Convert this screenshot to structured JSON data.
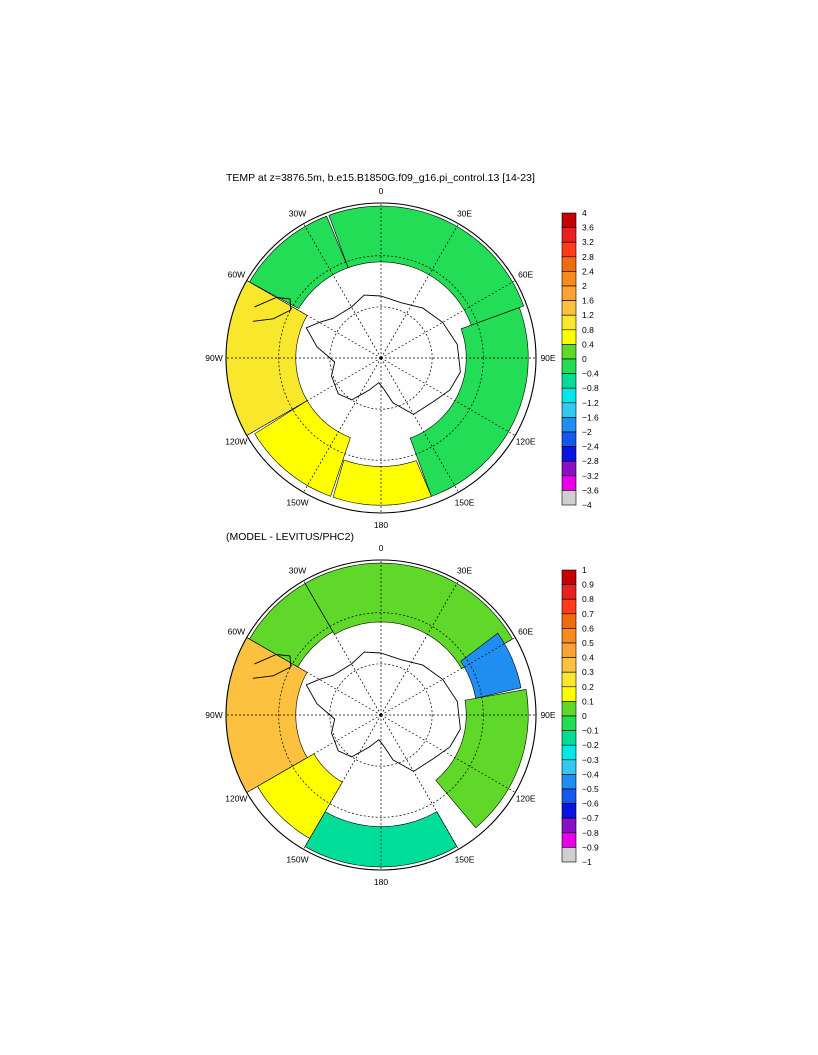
{
  "figure": {
    "panel1": {
      "title": "TEMP at z=3876.5m, b.e15.B1850G.f09_g16.pi_control.13 [14-23]",
      "lon_labels": [
        "0",
        "30E",
        "60E",
        "90E",
        "120E",
        "150E",
        "180",
        "150W",
        "120W",
        "90W",
        "60W",
        "30W"
      ],
      "colorbar": {
        "labels": [
          "4",
          "3.6",
          "3.2",
          "2.8",
          "2.4",
          "2",
          "1.6",
          "1.2",
          "0.8",
          "0.4",
          "0",
          "−0.4",
          "−0.8",
          "−1.2",
          "−1.6",
          "−2",
          "−2.4",
          "−2.8",
          "−3.2",
          "−3.6",
          "−4"
        ]
      }
    },
    "panel2": {
      "title": "(MODEL - LEVITUS/PHC2)",
      "lon_labels": [
        "0",
        "30E",
        "60E",
        "90E",
        "120E",
        "150E",
        "180",
        "150W",
        "120W",
        "90W",
        "60W",
        "30W"
      ],
      "colorbar": {
        "labels": [
          "1",
          "0.9",
          "0.8",
          "0.7",
          "0.6",
          "0.5",
          "0.4",
          "0.3",
          "0.2",
          "0.1",
          "0",
          "−0.1",
          "−0.2",
          "−0.3",
          "−0.4",
          "−0.5",
          "−0.6",
          "−0.7",
          "−0.8",
          "−0.9",
          "−1"
        ]
      }
    },
    "colors": {
      "bins_top_to_bottom": [
        "#c40000",
        "#e82020",
        "#ff3b1a",
        "#f06a0f",
        "#f68a1f",
        "#f9a334",
        "#fbc13f",
        "#f8e72a",
        "#ffff00",
        "#5fd82a",
        "#22dd55",
        "#00dd99",
        "#00e8e8",
        "#33c8f0",
        "#1f8ef0",
        "#1658ee",
        "#0a14e0",
        "#8a10c8",
        "#e800e8",
        "#cfcfcf",
        "#707070"
      ],
      "land": "#ffffff",
      "line": "#000000"
    }
  }
}
